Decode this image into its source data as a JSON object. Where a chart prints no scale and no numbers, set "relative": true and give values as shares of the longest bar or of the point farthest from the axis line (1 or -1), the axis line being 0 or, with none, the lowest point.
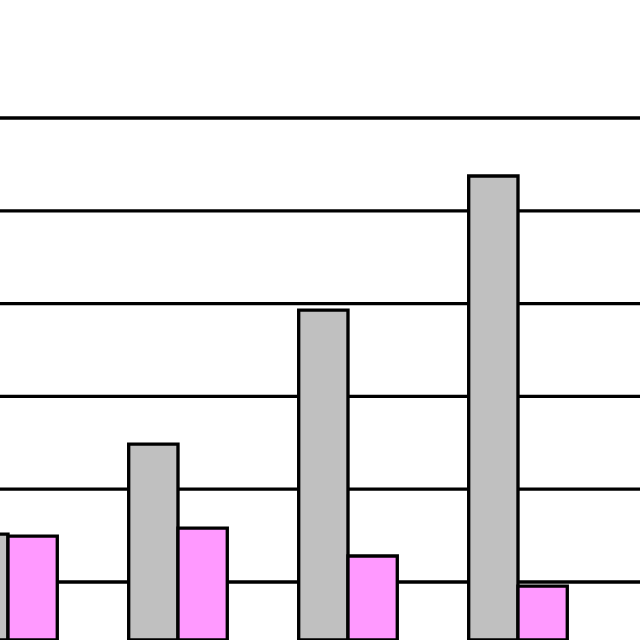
{
  "chart_data": {
    "type": "bar",
    "relative": true,
    "grid": "y",
    "legend": false,
    "categories": [
      null,
      null,
      null,
      null
    ],
    "series": [
      {
        "color": "#c0c0c0",
        "values": [
          0.228,
          0.422,
          0.711,
          1
        ]
      },
      {
        "color": "#ff99ff",
        "values": [
          0.224,
          0.241,
          0.181,
          0.116
        ]
      }
    ]
  }
}
